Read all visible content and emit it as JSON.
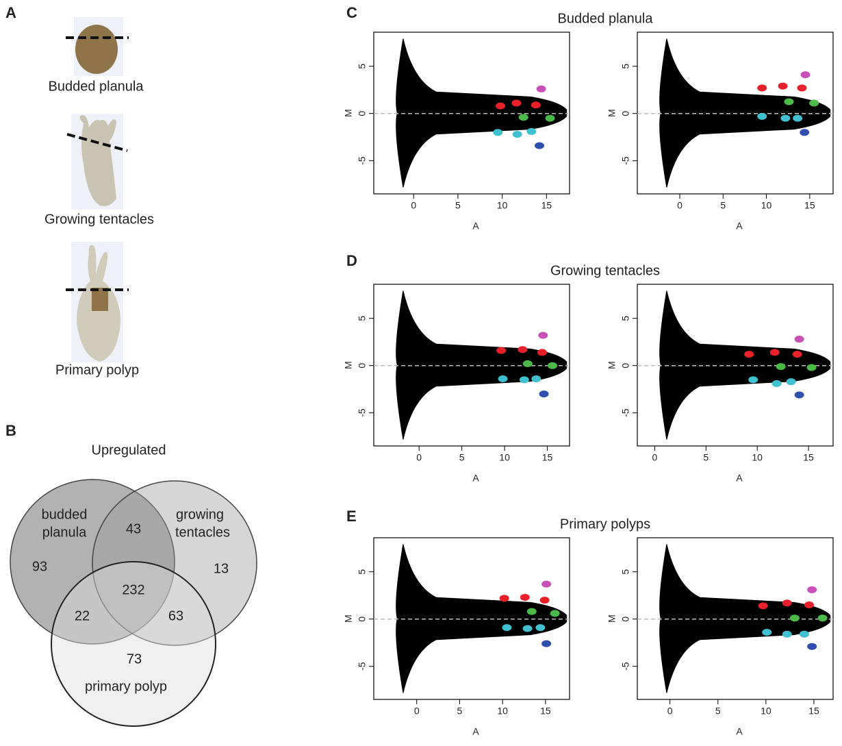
{
  "panel_labels": [
    "A",
    "B",
    "C",
    "D",
    "E"
  ],
  "panel_a": {
    "stages": [
      "Budded planula",
      "Growing tentacles",
      "Primary polyp"
    ]
  },
  "panel_b": {
    "title": "Upregulated",
    "sets": [
      [
        "budded",
        "planula"
      ],
      [
        "growing",
        "tentacles"
      ],
      [
        "primary polyp"
      ]
    ],
    "counts": [
      93,
      43,
      13,
      232,
      22,
      63,
      73
    ]
  },
  "rows": [
    {
      "title": "Budded planula"
    },
    {
      "title": "Growing tentacles"
    },
    {
      "title": "Primary polyps"
    }
  ],
  "chart_data": [
    {
      "type": "scatter",
      "xlabel": "A",
      "ylabel": "M",
      "xlim": [
        -4.5,
        17.6
      ],
      "ylim": [
        -8.5,
        8.6
      ],
      "xticks": [
        0,
        5,
        10,
        15
      ],
      "yticks": [
        -5,
        0,
        5
      ],
      "reference_line": 0,
      "x": [
        9.8,
        11.6,
        13.8,
        14.4,
        12.4,
        15.4,
        9.5,
        11.7,
        13.3,
        14.2
      ],
      "y": [
        0.8,
        1.1,
        0.9,
        2.6,
        -0.4,
        -0.5,
        -2.0,
        -2.2,
        -1.9,
        -3.4
      ],
      "colors": [
        "#e8202a",
        "#e8202a",
        "#e8202a",
        "#c850b8",
        "#4cba48",
        "#4cba48",
        "#40c0d0",
        "#40c0d0",
        "#40c0d0",
        "#3050b0"
      ]
    },
    {
      "type": "scatter",
      "xlabel": "A",
      "ylabel": "M",
      "xlim": [
        -4.9,
        17.7
      ],
      "ylim": [
        -8.5,
        8.6
      ],
      "xticks": [
        0,
        5,
        10,
        15
      ],
      "yticks": [
        -5,
        0,
        5
      ],
      "reference_line": 0,
      "x": [
        9.5,
        11.9,
        14.1,
        14.5,
        12.6,
        15.5,
        9.5,
        12.2,
        13.6,
        14.4
      ],
      "y": [
        2.7,
        2.9,
        2.7,
        4.1,
        1.25,
        1.1,
        -0.3,
        -0.5,
        -0.5,
        -2.0
      ],
      "colors": [
        "#e8202a",
        "#e8202a",
        "#e8202a",
        "#c850b8",
        "#4cba48",
        "#4cba48",
        "#40c0d0",
        "#40c0d0",
        "#40c0d0",
        "#3050b0"
      ]
    },
    {
      "type": "scatter",
      "xlabel": "A",
      "ylabel": "M",
      "xlim": [
        -5.3,
        17.6
      ],
      "ylim": [
        -8.5,
        8.6
      ],
      "xticks": [
        0,
        5,
        10,
        15
      ],
      "yticks": [
        -5,
        0,
        5
      ],
      "reference_line": 0,
      "x": [
        9.6,
        12.1,
        14.4,
        14.5,
        12.7,
        15.6,
        9.8,
        12.3,
        13.7,
        14.6
      ],
      "y": [
        1.6,
        1.7,
        1.4,
        3.2,
        0.2,
        0,
        -1.4,
        -1.5,
        -1.4,
        -3.0
      ],
      "colors": [
        "#e8202a",
        "#e8202a",
        "#e8202a",
        "#c850b8",
        "#4cba48",
        "#4cba48",
        "#40c0d0",
        "#40c0d0",
        "#40c0d0",
        "#3050b0"
      ]
    },
    {
      "type": "scatter",
      "xlabel": "A",
      "ylabel": "M",
      "xlim": [
        -1.7,
        17.4
      ],
      "ylim": [
        -8.5,
        8.6
      ],
      "xticks": [
        0,
        5,
        10,
        15
      ],
      "yticks": [
        -5,
        0,
        5
      ],
      "reference_line": 0,
      "x": [
        9.2,
        11.7,
        13.9,
        14.1,
        12.3,
        15.3,
        9.6,
        11.9,
        13.3,
        14.1
      ],
      "y": [
        1.2,
        1.4,
        1.2,
        2.8,
        -0.1,
        -0.2,
        -1.5,
        -1.9,
        -1.7,
        -3.1
      ],
      "colors": [
        "#e8202a",
        "#e8202a",
        "#e8202a",
        "#c850b8",
        "#4cba48",
        "#4cba48",
        "#40c0d0",
        "#40c0d0",
        "#40c0d0",
        "#3050b0"
      ]
    },
    {
      "type": "scatter",
      "xlabel": "A",
      "ylabel": "M",
      "xlim": [
        -5.0,
        17.8
      ],
      "ylim": [
        -8.5,
        8.6
      ],
      "xticks": [
        0,
        5,
        10,
        15
      ],
      "yticks": [
        -5,
        0,
        5
      ],
      "reference_line": 0,
      "x": [
        10.2,
        12.6,
        14.9,
        15.1,
        13.4,
        16.1,
        10.5,
        12.9,
        14.4,
        15.1
      ],
      "y": [
        2.2,
        2.3,
        2.0,
        3.7,
        0.8,
        0.6,
        -0.9,
        -1.0,
        -0.9,
        -2.6
      ],
      "colors": [
        "#e8202a",
        "#e8202a",
        "#e8202a",
        "#c850b8",
        "#4cba48",
        "#4cba48",
        "#40c0d0",
        "#40c0d0",
        "#40c0d0",
        "#3050b0"
      ]
    },
    {
      "type": "scatter",
      "xlabel": "A",
      "ylabel": "M",
      "xlim": [
        -3.4,
        17.0
      ],
      "ylim": [
        -8.5,
        8.6
      ],
      "xticks": [
        0,
        5,
        10,
        15
      ],
      "yticks": [
        -5,
        0,
        5
      ],
      "reference_line": 0,
      "x": [
        9.7,
        12.2,
        14.5,
        14.8,
        13.0,
        15.9,
        10.1,
        12.2,
        14.0,
        14.8
      ],
      "y": [
        1.4,
        1.7,
        1.5,
        3.1,
        0.1,
        0.1,
        -1.4,
        -1.6,
        -1.6,
        -2.9
      ],
      "colors": [
        "#e8202a",
        "#e8202a",
        "#e8202a",
        "#c850b8",
        "#4cba48",
        "#4cba48",
        "#40c0d0",
        "#40c0d0",
        "#40c0d0",
        "#3050b0"
      ]
    }
  ]
}
